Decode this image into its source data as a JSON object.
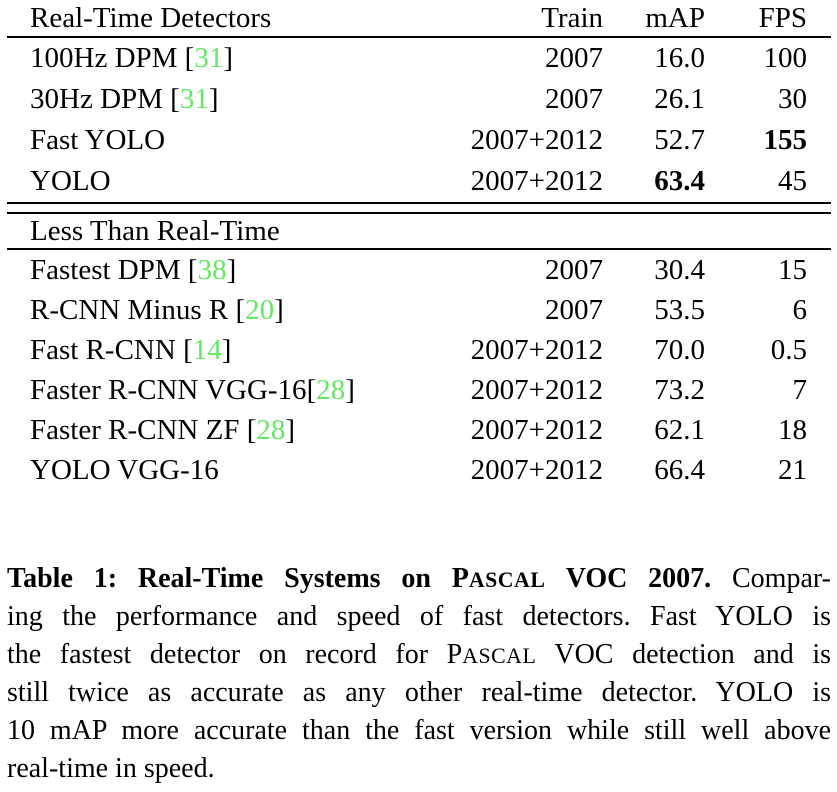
{
  "colors": {
    "background": "#ffffff",
    "text": "#000000",
    "rule": "#000000",
    "citation_green": "#64e764"
  },
  "table": {
    "header": {
      "name": "Real-Time Detectors",
      "train": "Train",
      "map": "mAP",
      "fps": "FPS"
    },
    "section1_rows": [
      {
        "name": "100Hz DPM ",
        "ref": "31",
        "train": "2007",
        "map": "16.0",
        "fps": "100"
      },
      {
        "name": "30Hz DPM ",
        "ref": "31",
        "train": "2007",
        "map": "26.1",
        "fps": "30"
      },
      {
        "name": "Fast YOLO",
        "ref": null,
        "train": "2007+2012",
        "map": "52.7",
        "fps": "155",
        "fps_bold": true
      },
      {
        "name": "YOLO",
        "ref": null,
        "train": "2007+2012",
        "map": "63.4",
        "map_bold": true,
        "fps": "45"
      }
    ],
    "section2_header": "Less Than Real-Time",
    "section2_rows": [
      {
        "name": "Fastest DPM ",
        "ref": "38",
        "train": "2007",
        "map": "30.4",
        "fps": "15"
      },
      {
        "name": "R-CNN Minus R ",
        "ref": "20",
        "train": "2007",
        "map": "53.5",
        "fps": "6"
      },
      {
        "name": "Fast R-CNN ",
        "ref": "14",
        "train": "2007+2012",
        "map": "70.0",
        "fps": "0.5"
      },
      {
        "name": "Faster R-CNN VGG-16",
        "ref": "28",
        "train": "2007+2012",
        "map": "73.2",
        "fps": "7"
      },
      {
        "name": "Faster R-CNN ZF ",
        "ref": "28",
        "train": "2007+2012",
        "map": "62.1",
        "fps": "18"
      },
      {
        "name": "YOLO VGG-16",
        "ref": null,
        "train": "2007+2012",
        "map": "66.4",
        "fps": "21"
      }
    ]
  },
  "caption": {
    "lines": [
      {
        "justify": true,
        "segments": [
          {
            "t": "Table 1: Real-Time Systems on ",
            "bold": true
          },
          {
            "t": "PASCAL",
            "bold": true,
            "smallcaps": true
          },
          {
            "t": " VOC 2007.",
            "bold": true
          },
          {
            "t": " Compar-"
          }
        ]
      },
      {
        "justify": true,
        "segments": [
          {
            "t": "ing the performance and speed of fast detectors. Fast YOLO is"
          }
        ]
      },
      {
        "justify": true,
        "segments": [
          {
            "t": "the fastest detector on record for "
          },
          {
            "t": "PASCAL",
            "smallcaps": true
          },
          {
            "t": " VOC detection and is"
          }
        ]
      },
      {
        "justify": true,
        "segments": [
          {
            "t": "still twice as accurate as any other real-time detector. YOLO is"
          }
        ]
      },
      {
        "justify": true,
        "segments": [
          {
            "t": "10 mAP more accurate than the fast version while still well above"
          }
        ]
      },
      {
        "justify": false,
        "segments": [
          {
            "t": "real-time in speed."
          }
        ]
      }
    ]
  }
}
